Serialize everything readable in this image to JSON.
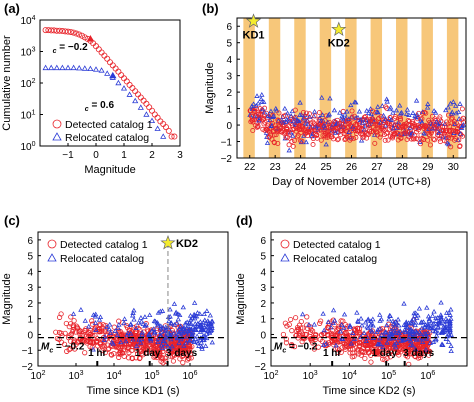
{
  "figure": {
    "colors": {
      "detected": "#e8232a",
      "relocated": "#2b3bd6",
      "band": "#f7c77a",
      "star": "#f4ec2e",
      "axis": "#000000"
    }
  },
  "chart_data": [
    {
      "id": "a",
      "panel_label": "(a)",
      "type": "scatter",
      "xlabel": "Magnitude",
      "ylabel": "Cumulative number",
      "xlim": [
        -2,
        3
      ],
      "ylim_log10": [
        0,
        4
      ],
      "y_scale": "log",
      "x_ticks": [
        "−1",
        "0",
        "1",
        "2",
        "3"
      ],
      "x_tick_values": [
        -1,
        0,
        1,
        2,
        3
      ],
      "y_ticks": [
        "10^0",
        "10^1",
        "10^2",
        "10^3",
        "10^4"
      ],
      "y_tick_values": [
        0,
        1,
        2,
        3,
        4
      ],
      "annotations": [
        {
          "text": "M",
          "sub": "c",
          "rest": " = −0.2",
          "x": -1.55,
          "y": 3.05
        },
        {
          "text": "M",
          "sub": "c",
          "rest": " = 0.6",
          "x": -0.4,
          "y": 1.2
        }
      ],
      "legend": {
        "placement": "bottom-right",
        "entries": [
          {
            "name": "Detected catalog 1",
            "marker": "circle"
          },
          {
            "name": "Relocated catalog",
            "marker": "triangle"
          }
        ]
      },
      "series": [
        {
          "name": "Detected catalog 1",
          "marker": "circle",
          "x": [
            -1.8,
            -1.7,
            -1.6,
            -1.5,
            -1.4,
            -1.3,
            -1.2,
            -1.1,
            -1.0,
            -0.9,
            -0.8,
            -0.7,
            -0.6,
            -0.5,
            -0.4,
            -0.3,
            -0.2,
            -0.1,
            0.0,
            0.1,
            0.2,
            0.3,
            0.4,
            0.5,
            0.6,
            0.7,
            0.8,
            0.9,
            1.0,
            1.1,
            1.2,
            1.3,
            1.4,
            1.5,
            1.6,
            1.7,
            1.8,
            1.9,
            2.0,
            2.1,
            2.2,
            2.3,
            2.4,
            2.5,
            2.6,
            2.7,
            2.8
          ],
          "y": [
            3.68,
            3.68,
            3.67,
            3.67,
            3.66,
            3.66,
            3.65,
            3.64,
            3.63,
            3.62,
            3.6,
            3.57,
            3.54,
            3.5,
            3.45,
            3.4,
            3.34,
            3.26,
            3.17,
            3.07,
            2.97,
            2.87,
            2.77,
            2.66,
            2.56,
            2.46,
            2.36,
            2.25,
            2.15,
            2.05,
            1.94,
            1.84,
            1.74,
            1.64,
            1.54,
            1.44,
            1.34,
            1.23,
            1.12,
            1.0,
            0.9,
            0.78,
            0.7,
            0.6,
            0.48,
            0.3,
            0.3
          ]
        },
        {
          "name": "Relocated catalog",
          "marker": "triangle",
          "x": [
            -1.8,
            -1.6,
            -1.4,
            -1.2,
            -1.0,
            -0.8,
            -0.6,
            -0.4,
            -0.2,
            0.0,
            0.2,
            0.4,
            0.6,
            0.8,
            1.0,
            1.2,
            1.4,
            1.6,
            1.8,
            2.0,
            2.2,
            2.4
          ],
          "y": [
            2.48,
            2.48,
            2.48,
            2.48,
            2.48,
            2.48,
            2.47,
            2.46,
            2.45,
            2.43,
            2.4,
            2.3,
            2.17,
            2.0,
            1.83,
            1.63,
            1.43,
            1.22,
            1.0,
            0.8,
            0.55,
            0.3
          ]
        }
      ]
    },
    {
      "id": "b",
      "panel_label": "(b)",
      "type": "scatter",
      "xlabel": "Day of November 2014 (UTC+8)",
      "ylabel": "Magnitude",
      "xlim": [
        21.5,
        30.5
      ],
      "ylim": [
        -2,
        6.5
      ],
      "x_ticks": [
        "22",
        "23",
        "24",
        "25",
        "26",
        "27",
        "28",
        "29",
        "30"
      ],
      "x_tick_values": [
        22,
        23,
        24,
        25,
        26,
        27,
        28,
        29,
        30
      ],
      "y_ticks": [
        "−2",
        "−1",
        "0",
        "1",
        "2",
        "3",
        "4",
        "5",
        "6"
      ],
      "y_tick_values": [
        -2,
        -1,
        0,
        1,
        2,
        3,
        4,
        5,
        6
      ],
      "shaded_bands": [
        [
          21.75,
          22.2
        ],
        [
          22.75,
          23.2
        ],
        [
          23.75,
          24.2
        ],
        [
          24.75,
          25.2
        ],
        [
          25.75,
          26.2
        ],
        [
          26.75,
          27.2
        ],
        [
          27.75,
          28.2
        ],
        [
          28.75,
          29.2
        ],
        [
          29.75,
          30.2
        ]
      ],
      "events": [
        {
          "label": "KD1",
          "x": 22.15,
          "magnitude": 6.3
        },
        {
          "label": "KD2",
          "x": 25.5,
          "magnitude": 5.8
        }
      ]
    },
    {
      "id": "c",
      "panel_label": "(c)",
      "type": "scatter",
      "xlabel": "Time since KD1 (s)",
      "ylabel": "Magnitude",
      "x_scale": "log",
      "xlim_log10": [
        2,
        7
      ],
      "ylim": [
        -2,
        6.5
      ],
      "x_ticks": [
        "10^2",
        "10^3",
        "10^4",
        "10^5",
        "10^6"
      ],
      "x_tick_values": [
        2,
        3,
        4,
        5,
        6
      ],
      "y_ticks": [
        "−2",
        "−1",
        "0",
        "1",
        "2",
        "3",
        "4",
        "5",
        "6"
      ],
      "y_tick_values": [
        -2,
        -1,
        0,
        1,
        2,
        3,
        4,
        5,
        6
      ],
      "time_markers": [
        {
          "label": "1 hr",
          "log10_s": 3.56
        },
        {
          "label": "1 day",
          "log10_s": 4.94
        },
        {
          "label": "3 days",
          "log10_s": 5.41
        }
      ],
      "mc_line": {
        "label": "M",
        "sub": "c",
        "rest": " = −0.2",
        "value": -0.2
      },
      "event": {
        "label": "KD2",
        "log10_s": 5.42,
        "magnitude": 5.8
      },
      "legend": {
        "placement": "top-left",
        "entries": [
          {
            "name": "Detected catalog 1",
            "marker": "circle"
          },
          {
            "name": "Relocated catalog",
            "marker": "triangle"
          }
        ]
      }
    },
    {
      "id": "d",
      "panel_label": "(d)",
      "type": "scatter",
      "xlabel": "Time since KD2 (s)",
      "ylabel": "Magnitude",
      "x_scale": "log",
      "xlim_log10": [
        2,
        7
      ],
      "ylim": [
        -2,
        6.5
      ],
      "x_ticks": [
        "10^2",
        "10^3",
        "10^4",
        "10^5",
        "10^6"
      ],
      "x_tick_values": [
        2,
        3,
        4,
        5,
        6
      ],
      "y_ticks": [
        "−2",
        "−1",
        "0",
        "1",
        "2",
        "3",
        "4",
        "5",
        "6"
      ],
      "y_tick_values": [
        -2,
        -1,
        0,
        1,
        2,
        3,
        4,
        5,
        6
      ],
      "time_markers": [
        {
          "label": "1 hr",
          "log10_s": 3.56
        },
        {
          "label": "1 day",
          "log10_s": 4.94
        },
        {
          "label": "3 days",
          "log10_s": 5.41
        }
      ],
      "mc_line": {
        "label": "M",
        "sub": "c",
        "rest": " = −0.2",
        "value": -0.2
      },
      "legend": {
        "placement": "top-left",
        "entries": [
          {
            "name": "Detected catalog 1",
            "marker": "circle"
          },
          {
            "name": "Relocated catalog",
            "marker": "triangle"
          }
        ]
      }
    }
  ]
}
